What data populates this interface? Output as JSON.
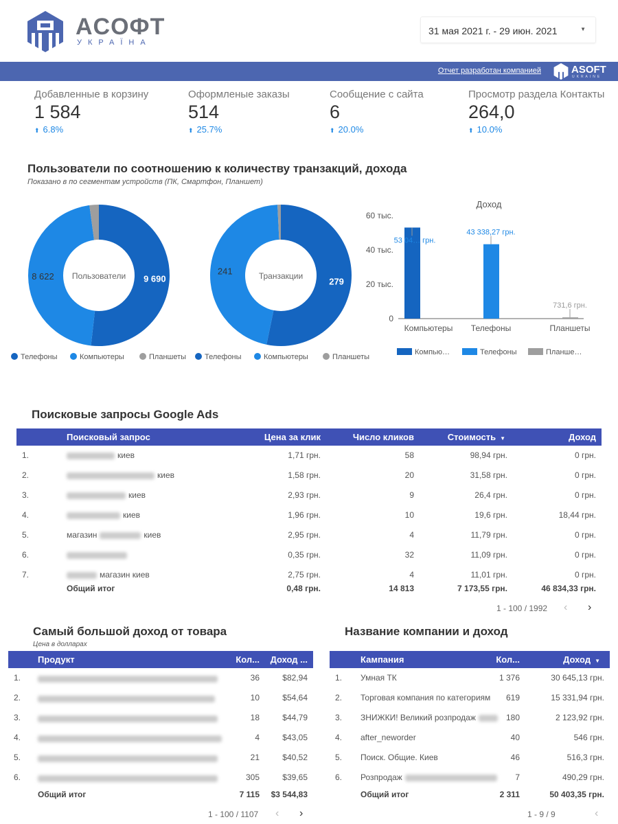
{
  "header": {
    "logo_text": "ACOФT",
    "logo_subtext": "УКРАЇНА",
    "date_range": "31 мая 2021 г. - 29 июн. 2021",
    "band_link": "Отчет разработан компанией",
    "band_logo_text": "ASOFT",
    "band_logo_subtext": "UKRAINE"
  },
  "kpis": [
    {
      "label": "Добавленные в корзину",
      "value": "1 584",
      "change": "6.8%"
    },
    {
      "label": "Оформленые заказы",
      "value": "514",
      "change": "25.7%"
    },
    {
      "label": "Сообщение с сайта",
      "value": "6",
      "change": "20.0%"
    },
    {
      "label": "Просмотр раздела Контакты",
      "value": "264,0",
      "change": "10.0%"
    }
  ],
  "devices_section": {
    "title": "Пользователи по соотношению к количеству транзакций, дохода",
    "subtitle": "Показано в по сегментам устройств (ПК, Смартфон, Планшет)"
  },
  "colors": {
    "phones": "#1565c0",
    "computers": "#1e88e5",
    "tablets": "#9e9e9e",
    "table_header": "#3f51b5",
    "band": "#4c66b0",
    "positive": "#1e88e5"
  },
  "chart_data": [
    {
      "type": "pie",
      "donut": true,
      "center_label": "Пользователи",
      "categories": [
        "Телефоны",
        "Компьютеры",
        "Планшеты"
      ],
      "values": [
        9690,
        8622,
        400
      ],
      "labels": [
        "9 690",
        "8 622",
        ""
      ],
      "legend": "bottom"
    },
    {
      "type": "pie",
      "donut": true,
      "center_label": "Транзакции",
      "categories": [
        "Телефоны",
        "Компьютеры",
        "Планшеты"
      ],
      "values": [
        279,
        241,
        4
      ],
      "labels": [
        "279",
        "241",
        ""
      ],
      "legend": "bottom"
    },
    {
      "type": "bar",
      "title": "Доход",
      "categories": [
        "Компьютеры",
        "Телефоны",
        "Планшеты"
      ],
      "values": [
        53040,
        43338.27,
        731.6
      ],
      "labels": [
        "53 04… грн.",
        "43 338,27 грн.",
        "731,6 грн."
      ],
      "yticks": [
        "0",
        "20 тыс.",
        "40 тыс.",
        "60 тыс."
      ],
      "ylim": [
        0,
        60000
      ],
      "legend_entries": [
        "Компью…",
        "Телефоны",
        "Планше…"
      ],
      "legend": "bottom"
    }
  ],
  "ads_table": {
    "title": "Поисковые запросы Google Ads",
    "columns": [
      "Поисковый запрос",
      "Цена за клик",
      "Число кликов",
      "Стоимость",
      "Доход"
    ],
    "sort_indicator": "▼",
    "rows": [
      {
        "n": "1.",
        "query": "киев",
        "cpc": "1,71 грн.",
        "clicks": "58",
        "cost": "98,94 грн.",
        "revenue": "0 грн."
      },
      {
        "n": "2.",
        "query": "киев",
        "cpc": "1,58 грн.",
        "clicks": "20",
        "cost": "31,58 грн.",
        "revenue": "0 грн."
      },
      {
        "n": "3.",
        "query": "киев",
        "cpc": "2,93 грн.",
        "clicks": "9",
        "cost": "26,4 грн.",
        "revenue": "0 грн."
      },
      {
        "n": "4.",
        "query": "киев",
        "cpc": "1,96 грн.",
        "clicks": "10",
        "cost": "19,6 грн.",
        "revenue": "18,44 грн."
      },
      {
        "n": "5.",
        "query_prefix": "магазин",
        "query": "киев",
        "cpc": "2,95 грн.",
        "clicks": "4",
        "cost": "11,79 грн.",
        "revenue": "0 грн."
      },
      {
        "n": "6.",
        "query": "",
        "cpc": "0,35 грн.",
        "clicks": "32",
        "cost": "11,09 грн.",
        "revenue": "0 грн."
      },
      {
        "n": "7.",
        "query": "магазин киев",
        "cpc": "2,75 грн.",
        "clicks": "4",
        "cost": "11,01 грн.",
        "revenue": "0 грн."
      }
    ],
    "total": {
      "label": "Общий итог",
      "cpc": "0,48 грн.",
      "clicks": "14 813",
      "cost": "7 173,55 грн.",
      "revenue": "46 834,33 грн."
    },
    "pagination": "1 - 100 / 1992"
  },
  "products_table": {
    "title": "Самый большой доход от товара",
    "subtitle": "Цена в долларах",
    "columns": [
      "Продукт",
      "Кол...",
      "Доход ..."
    ],
    "rows": [
      {
        "n": "1.",
        "qty": "36",
        "revenue": "$82,94"
      },
      {
        "n": "2.",
        "qty": "10",
        "revenue": "$54,64"
      },
      {
        "n": "3.",
        "qty": "18",
        "revenue": "$44,79"
      },
      {
        "n": "4.",
        "qty": "4",
        "revenue": "$43,05"
      },
      {
        "n": "5.",
        "qty": "21",
        "revenue": "$40,52"
      },
      {
        "n": "6.",
        "qty": "305",
        "revenue": "$39,65"
      }
    ],
    "total": {
      "label": "Общий итог",
      "qty": "7 115",
      "revenue": "$3 544,83"
    },
    "pagination": "1 - 100 / 1107"
  },
  "campaigns_table": {
    "title": "Название компании и доход",
    "columns": [
      "Кампания",
      "Кол...",
      "Доход"
    ],
    "sort_indicator": "▼",
    "rows": [
      {
        "n": "1.",
        "name": "Умная ТК",
        "qty": "1 376",
        "revenue": "30 645,13 грн.",
        "blur": false
      },
      {
        "n": "2.",
        "name": "Торговая компания по категориям",
        "qty": "619",
        "revenue": "15 331,94 грн.",
        "blur": false
      },
      {
        "n": "3.",
        "name": "ЗНИЖКИ! Великий розпродаж",
        "qty": "180",
        "revenue": "2 123,92 грн.",
        "blur": true
      },
      {
        "n": "4.",
        "name": "after_neworder",
        "qty": "40",
        "revenue": "546 грн.",
        "blur": false
      },
      {
        "n": "5.",
        "name": "Поиск. Общие. Киев",
        "qty": "46",
        "revenue": "516,3 грн.",
        "blur": false
      },
      {
        "n": "6.",
        "name": "Розпродаж",
        "qty": "7",
        "revenue": "490,29 грн.",
        "blur": true
      }
    ],
    "total": {
      "label": "Общий итог",
      "qty": "2 311",
      "revenue": "50 403,35 грн."
    },
    "pagination": "1 - 9 / 9"
  }
}
